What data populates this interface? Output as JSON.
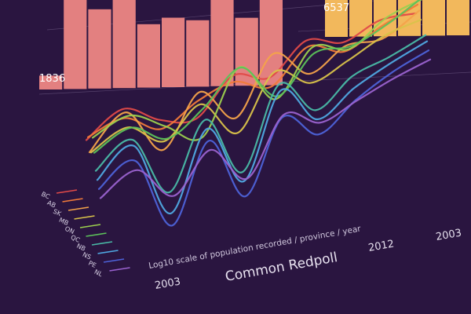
{
  "chart_data": [
    {
      "type": "bar",
      "color": "#e38080",
      "values": [
        1836,
        12000,
        10500,
        12200,
        8400,
        9200,
        8800,
        11500,
        9000,
        12200
      ],
      "value_labels": [
        "1836"
      ],
      "ylim": [
        0,
        13000
      ]
    },
    {
      "type": "bar",
      "color": "#f2b85c",
      "values": [
        6537,
        12000,
        11200,
        12400,
        12000,
        12200
      ],
      "value_labels": [
        "6537"
      ],
      "ylim": [
        0,
        13000
      ]
    },
    {
      "type": "line",
      "title": "Common Redpoll",
      "ylabel": "Log10 scale of population recorded / province / year",
      "x_tick_labels": [
        "2003",
        "2012",
        "2003"
      ],
      "x": [
        2003,
        2004,
        2005,
        2006,
        2007,
        2008,
        2009,
        2010,
        2011,
        2012
      ],
      "ylim": [
        0,
        5
      ],
      "series": [
        {
          "name": "BC",
          "color": "#e04a48",
          "values": [
            3.2,
            3.8,
            3.0,
            2.6,
            3.6,
            3.1,
            3.9,
            3.4,
            3.7,
            3.5
          ]
        },
        {
          "name": "AB",
          "color": "#f07a3a",
          "values": [
            3.4,
            3.6,
            2.8,
            3.3,
            3.5,
            2.9,
            3.8,
            3.2,
            3.6,
            3.9
          ]
        },
        {
          "name": "SK",
          "color": "#f3a24a",
          "values": [
            3.0,
            3.9,
            2.2,
            3.7,
            2.4,
            4.1,
            3.0,
            3.5,
            3.3,
            3.8
          ]
        },
        {
          "name": "MB",
          "color": "#d9c24a",
          "values": [
            3.1,
            3.5,
            2.6,
            3.4,
            2.0,
            3.6,
            2.8,
            3.1,
            3.5,
            3.6
          ]
        },
        {
          "name": "ON",
          "color": "#9ccf4e",
          "values": [
            3.7,
            4.0,
            3.2,
            2.4,
            4.3,
            2.8,
            4.1,
            3.6,
            4.2,
            4.4
          ]
        },
        {
          "name": "QC",
          "color": "#5cc15a",
          "values": [
            3.3,
            3.7,
            2.9,
            3.5,
            4.4,
            3.0,
            4.0,
            3.8,
            4.1,
            4.6
          ]
        },
        {
          "name": "NB",
          "color": "#49b9a6",
          "values": [
            2.8,
            3.4,
            1.2,
            3.2,
            1.0,
            3.5,
            2.2,
            2.9,
            3.1,
            3.4
          ]
        },
        {
          "name": "NS",
          "color": "#4fa8e2",
          "values": [
            2.6,
            3.3,
            0.6,
            3.0,
            0.8,
            3.4,
            2.0,
            2.6,
            3.0,
            3.3
          ]
        },
        {
          "name": "PE",
          "color": "#4d62d8",
          "values": [
            2.4,
            2.9,
            0.3,
            2.7,
            0.4,
            2.6,
            1.6,
            2.3,
            2.8,
            3.1
          ]
        },
        {
          "name": "NL",
          "color": "#9a62cf",
          "values": [
            2.2,
            2.7,
            1.4,
            2.5,
            1.1,
            2.8,
            2.1,
            2.4,
            2.7,
            2.9
          ]
        }
      ]
    }
  ]
}
